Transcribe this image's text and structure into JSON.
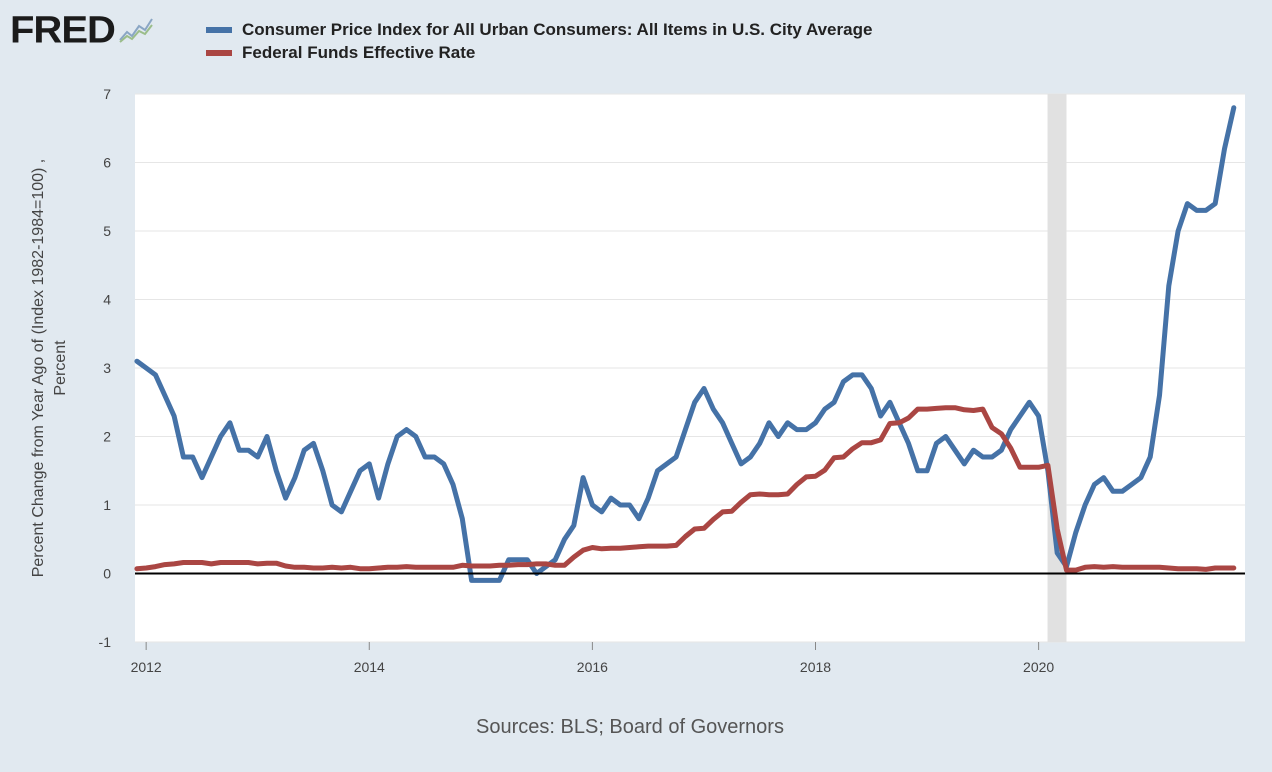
{
  "brand": {
    "logo_text": "FRED",
    "logo_icon": "fred-graph-icon"
  },
  "legend": [
    {
      "label": "Consumer Price Index for All Urban Consumers: All Items in U.S. City Average",
      "color": "#4572a7"
    },
    {
      "label": "Federal Funds Effective Rate",
      "color": "#aa4643"
    }
  ],
  "source_text": "Sources: BLS; Board of Governors",
  "chart_data": {
    "type": "line",
    "xlabel": "",
    "ylabel": "Percent Change from Year Ago of (Index 1982-1984=100) ,\nPercent",
    "xlim": [
      2011.9,
      2021.85
    ],
    "ylim": [
      -1,
      7
    ],
    "yticks": [
      -1,
      0,
      1,
      2,
      3,
      4,
      5,
      6,
      7
    ],
    "xticks": [
      2012,
      2014,
      2016,
      2018,
      2020
    ],
    "grid": true,
    "legend_position": "top",
    "recession_band": [
      2020.08,
      2020.25
    ],
    "series": [
      {
        "name": "Consumer Price Index for All Urban Consumers: All Items in U.S. City Average",
        "color": "#4572a7",
        "start": 2011.917,
        "step": 0.08333,
        "values": [
          3.1,
          3.0,
          2.9,
          2.6,
          2.3,
          1.7,
          1.7,
          1.4,
          1.7,
          2.0,
          2.2,
          1.8,
          1.8,
          1.7,
          2.0,
          1.5,
          1.1,
          1.4,
          1.8,
          1.9,
          1.5,
          1.0,
          0.9,
          1.2,
          1.5,
          1.6,
          1.1,
          1.6,
          2.0,
          2.1,
          2.0,
          1.7,
          1.7,
          1.6,
          1.3,
          0.8,
          -0.1,
          -0.1,
          -0.1,
          -0.1,
          0.2,
          0.2,
          0.2,
          0.0,
          0.1,
          0.2,
          0.5,
          0.7,
          1.4,
          1.0,
          0.9,
          1.1,
          1.0,
          1.0,
          0.8,
          1.1,
          1.5,
          1.6,
          1.7,
          2.1,
          2.5,
          2.7,
          2.4,
          2.2,
          1.9,
          1.6,
          1.7,
          1.9,
          2.2,
          2.0,
          2.2,
          2.1,
          2.1,
          2.2,
          2.4,
          2.5,
          2.8,
          2.9,
          2.9,
          2.7,
          2.3,
          2.5,
          2.2,
          1.9,
          1.5,
          1.5,
          1.9,
          2.0,
          1.8,
          1.6,
          1.8,
          1.7,
          1.7,
          1.8,
          2.1,
          2.3,
          2.5,
          2.3,
          1.5,
          0.3,
          0.1,
          0.6,
          1.0,
          1.3,
          1.4,
          1.2,
          1.2,
          1.3,
          1.4,
          1.7,
          2.6,
          4.2,
          5.0,
          5.4,
          5.3,
          5.3,
          5.4,
          6.2,
          6.8
        ]
      },
      {
        "name": "Federal Funds Effective Rate",
        "color": "#aa4643",
        "start": 2011.917,
        "step": 0.08333,
        "values": [
          0.07,
          0.08,
          0.1,
          0.13,
          0.14,
          0.16,
          0.16,
          0.16,
          0.14,
          0.16,
          0.16,
          0.16,
          0.16,
          0.14,
          0.15,
          0.15,
          0.11,
          0.09,
          0.09,
          0.08,
          0.08,
          0.09,
          0.08,
          0.09,
          0.07,
          0.07,
          0.08,
          0.09,
          0.09,
          0.1,
          0.09,
          0.09,
          0.09,
          0.09,
          0.09,
          0.12,
          0.11,
          0.11,
          0.11,
          0.12,
          0.12,
          0.13,
          0.13,
          0.14,
          0.14,
          0.12,
          0.12,
          0.24,
          0.34,
          0.38,
          0.36,
          0.37,
          0.37,
          0.38,
          0.39,
          0.4,
          0.4,
          0.4,
          0.41,
          0.54,
          0.65,
          0.66,
          0.79,
          0.9,
          0.91,
          1.04,
          1.15,
          1.16,
          1.15,
          1.15,
          1.16,
          1.3,
          1.41,
          1.42,
          1.51,
          1.69,
          1.7,
          1.82,
          1.91,
          1.91,
          1.95,
          2.19,
          2.2,
          2.27,
          2.4,
          2.4,
          2.41,
          2.42,
          2.42,
          2.39,
          2.38,
          2.4,
          2.13,
          2.04,
          1.83,
          1.55,
          1.55,
          1.55,
          1.58,
          0.65,
          0.05,
          0.05,
          0.09,
          0.1,
          0.09,
          0.1,
          0.09,
          0.09,
          0.09,
          0.09,
          0.09,
          0.08,
          0.07,
          0.07,
          0.07,
          0.06,
          0.08,
          0.08,
          0.08
        ]
      }
    ]
  }
}
